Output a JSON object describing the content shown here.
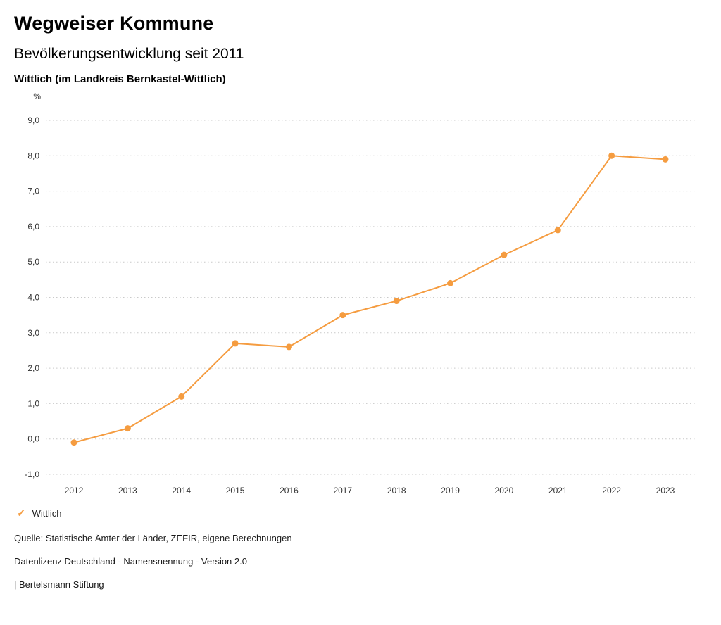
{
  "header": {
    "app_title": "Wegweiser Kommune"
  },
  "chart_data": {
    "type": "line",
    "title": "Bevölkerungsentwicklung seit 2011",
    "location": "Wittlich (im Landkreis Bernkastel-Wittlich)",
    "ylabel": "%",
    "x": [
      2012,
      2013,
      2014,
      2015,
      2016,
      2017,
      2018,
      2019,
      2020,
      2021,
      2022,
      2023
    ],
    "series": [
      {
        "name": "Wittlich",
        "color": "#F59C40",
        "values": [
          -0.1,
          0.3,
          1.2,
          2.7,
          2.6,
          3.5,
          3.9,
          4.4,
          5.2,
          5.9,
          8.0,
          7.9
        ]
      }
    ],
    "ylim": [
      -1.0,
      9.0
    ],
    "ytick_step": 1.0,
    "ytick_format": "german-comma-1-decimal",
    "grid": "horizontal-dotted",
    "grid_color": "#C9C9C9",
    "marker": "circle",
    "legend_position": "bottom-left"
  },
  "legend": {
    "check_icon": "✓",
    "items": [
      {
        "label": "Wittlich"
      }
    ]
  },
  "footer": {
    "source": "Quelle: Statistische Ämter der Länder, ZEFIR, eigene Berechnungen",
    "license": "Datenlizenz Deutschland - Namensnennung - Version 2.0",
    "publisher": "| Bertelsmann Stiftung"
  }
}
